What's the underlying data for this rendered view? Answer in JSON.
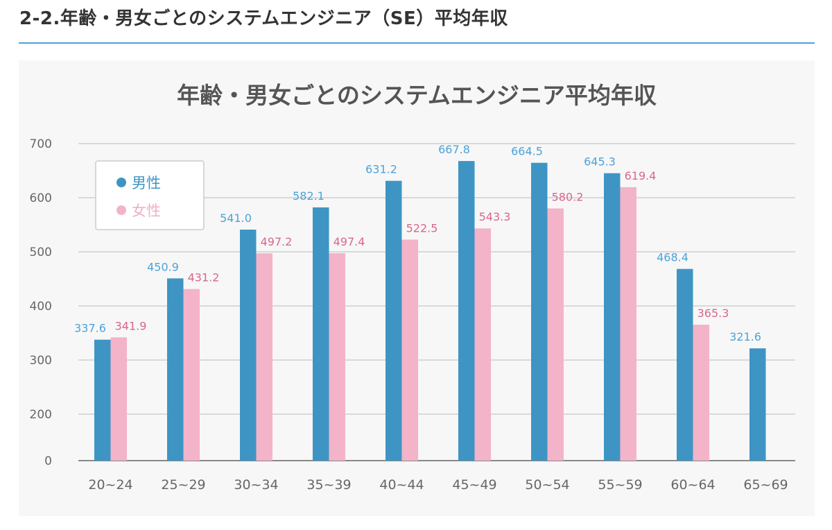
{
  "page": {
    "heading": "2-2.年齢・男女ごとのシステムエンジニア（SE）平均年収"
  },
  "colors": {
    "male": "#3e95c4",
    "female": "#f3b3c9",
    "male_label": "#4aa3d8",
    "female_label": "#d9668f",
    "heading_rule": "#4aa3d8"
  },
  "chart_data": {
    "type": "bar",
    "title": "年齢・男女ごとのシステムエンジニア平均年収",
    "xlabel": "",
    "ylabel": "",
    "categories": [
      "20~24",
      "25~29",
      "30~34",
      "35~39",
      "40~44",
      "45~49",
      "50~54",
      "55~59",
      "60~64",
      "65~69"
    ],
    "series": [
      {
        "name": "男性",
        "values": [
          337.6,
          450.9,
          541.0,
          582.1,
          631.2,
          667.8,
          664.5,
          645.3,
          468.4,
          321.6
        ]
      },
      {
        "name": "女性",
        "values": [
          341.9,
          431.2,
          497.2,
          497.4,
          522.5,
          543.3,
          580.2,
          619.4,
          365.3,
          null
        ]
      }
    ],
    "data_labels": {
      "male": [
        "337.6",
        "450.9",
        "541.0",
        "582.1",
        "631.2",
        "667.8",
        "664.5",
        "645.3",
        "468.4",
        "321.6"
      ],
      "female": [
        "341.9",
        "431.2",
        "497.2",
        "497.4",
        "522.5",
        "543.3",
        "580.2",
        "619.4",
        "365.3",
        ""
      ]
    },
    "yticks": [
      0,
      200,
      300,
      400,
      500,
      600,
      700
    ],
    "ytick_labels": [
      "0",
      "200",
      "300",
      "400",
      "500",
      "600",
      "700"
    ],
    "ylim": [
      0,
      700
    ],
    "axis_break": "between 0 and 200",
    "grid": true,
    "legend": {
      "position": "top-left",
      "entries": [
        "男性",
        "女性"
      ]
    }
  }
}
